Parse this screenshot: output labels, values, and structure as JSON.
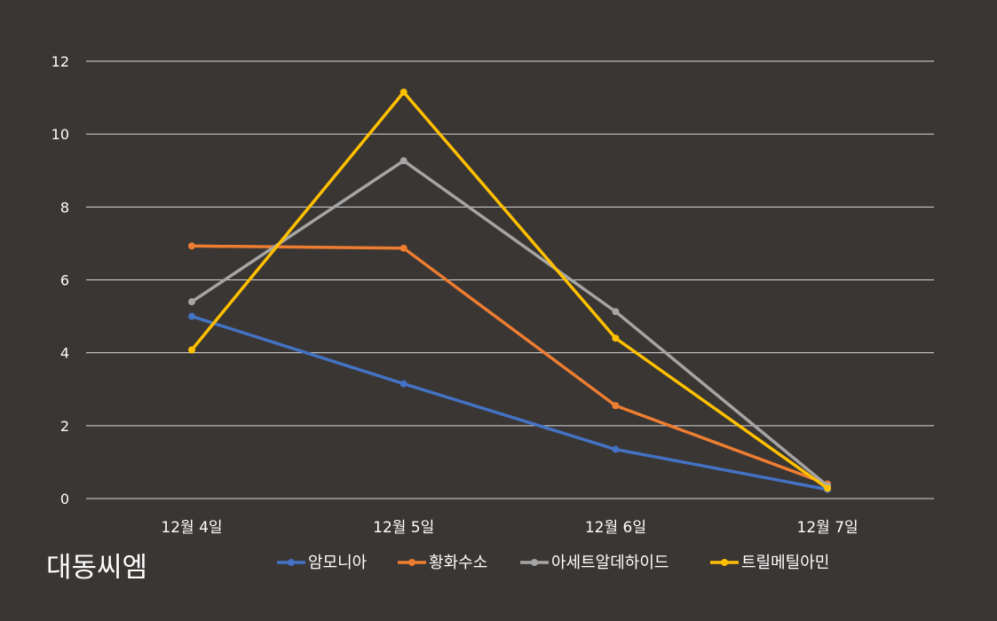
{
  "company_label": "대동씨엠",
  "chart_data": {
    "type": "line",
    "title": "",
    "xlabel": "",
    "ylabel": "",
    "categories": [
      "12월 4일",
      "12월 5일",
      "12월 6일",
      "12월 7일"
    ],
    "y_ticks": [
      "0",
      "2",
      "4",
      "6",
      "8",
      "10",
      "12"
    ],
    "ylim": [
      0,
      12
    ],
    "grid": true,
    "legend_position": "bottom",
    "series": [
      {
        "name": "암모니아",
        "color": "#4472c4",
        "values": [
          5.0,
          3.15,
          1.35,
          0.25
        ]
      },
      {
        "name": "황화수소",
        "color": "#ed7d31",
        "values": [
          6.93,
          6.87,
          2.55,
          0.4
        ]
      },
      {
        "name": "아세트알데하이드",
        "color": "#a5a5a5",
        "values": [
          5.4,
          9.27,
          5.13,
          0.35
        ]
      },
      {
        "name": "트릴메틸아민",
        "color": "#ffc000",
        "values": [
          4.08,
          11.15,
          4.4,
          0.28
        ]
      }
    ]
  }
}
